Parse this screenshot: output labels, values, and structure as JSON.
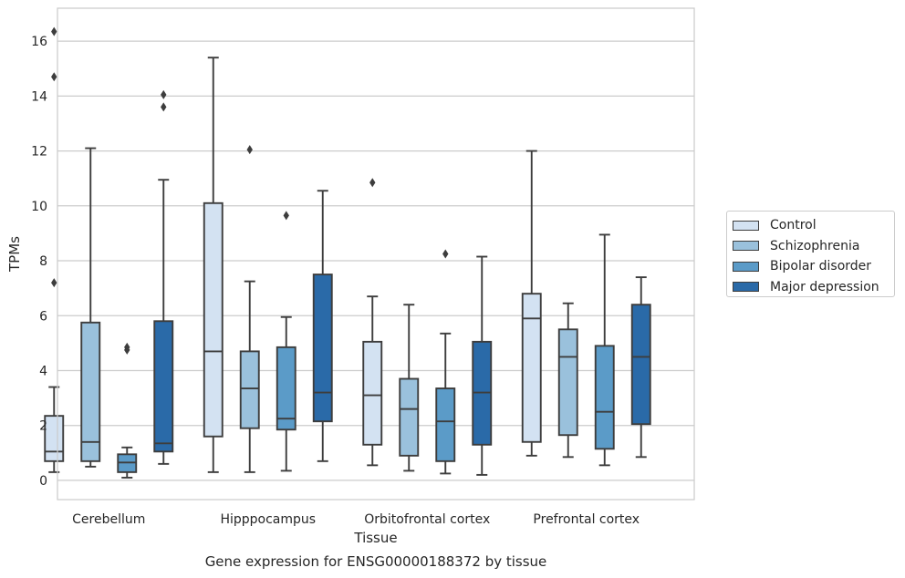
{
  "chart_data": {
    "type": "box",
    "title": "",
    "caption": "Gene expression for ENSG00000188372 by tissue",
    "xlabel": "Tissue",
    "ylabel": "TPMs",
    "ylim": [
      -0.7,
      17.2
    ],
    "yticks": [
      0,
      2,
      4,
      6,
      8,
      10,
      12,
      14,
      16
    ],
    "grid": "horizontal",
    "legend_position": "right",
    "categories": [
      "Cerebellum",
      "Hipppocampus",
      "Orbitofrontal cortex",
      "Prefrontal cortex"
    ],
    "series": [
      {
        "name": "Control",
        "color": "#d3e2f2",
        "boxes": [
          {
            "min": 0.3,
            "q1": 0.7,
            "median": 1.05,
            "q3": 2.35,
            "max": 3.4,
            "outliers": [
              7.2,
              14.7,
              16.35
            ]
          },
          {
            "min": 0.3,
            "q1": 1.6,
            "median": 4.7,
            "q3": 10.1,
            "max": 15.4,
            "outliers": []
          },
          {
            "min": 0.55,
            "q1": 1.3,
            "median": 3.1,
            "q3": 5.05,
            "max": 6.7,
            "outliers": [
              10.85
            ]
          },
          {
            "min": 0.9,
            "q1": 1.4,
            "median": 5.9,
            "q3": 6.8,
            "max": 12.0,
            "outliers": []
          }
        ]
      },
      {
        "name": "Schizophrenia",
        "color": "#9ac1dc",
        "boxes": [
          {
            "min": 0.5,
            "q1": 0.7,
            "median": 1.4,
            "q3": 5.75,
            "max": 12.1,
            "outliers": []
          },
          {
            "min": 0.3,
            "q1": 1.9,
            "median": 3.35,
            "q3": 4.7,
            "max": 7.25,
            "outliers": [
              12.05
            ]
          },
          {
            "min": 0.35,
            "q1": 0.9,
            "median": 2.6,
            "q3": 3.7,
            "max": 6.4,
            "outliers": []
          },
          {
            "min": 0.85,
            "q1": 1.65,
            "median": 4.5,
            "q3": 5.5,
            "max": 6.45,
            "outliers": []
          }
        ]
      },
      {
        "name": "Bipolar disorder",
        "color": "#5b9bc8",
        "boxes": [
          {
            "min": 0.1,
            "q1": 0.3,
            "median": 0.65,
            "q3": 0.95,
            "max": 1.2,
            "outliers": [
              4.75,
              4.85
            ]
          },
          {
            "min": 0.35,
            "q1": 1.85,
            "median": 2.25,
            "q3": 4.85,
            "max": 5.95,
            "outliers": [
              9.65
            ]
          },
          {
            "min": 0.25,
            "q1": 0.7,
            "median": 2.15,
            "q3": 3.35,
            "max": 5.35,
            "outliers": [
              8.25
            ]
          },
          {
            "min": 0.55,
            "q1": 1.15,
            "median": 2.5,
            "q3": 4.9,
            "max": 8.95,
            "outliers": []
          }
        ]
      },
      {
        "name": "Major depression",
        "color": "#2a6aa8",
        "boxes": [
          {
            "min": 0.6,
            "q1": 1.05,
            "median": 1.35,
            "q3": 5.8,
            "max": 10.95,
            "outliers": [
              13.6,
              14.05
            ]
          },
          {
            "min": 0.7,
            "q1": 2.15,
            "median": 3.2,
            "q3": 7.5,
            "max": 10.55,
            "outliers": []
          },
          {
            "min": 0.2,
            "q1": 1.3,
            "median": 3.2,
            "q3": 5.05,
            "max": 8.15,
            "outliers": []
          },
          {
            "min": 0.85,
            "q1": 2.05,
            "median": 4.5,
            "q3": 6.4,
            "max": 7.4,
            "outliers": []
          }
        ]
      }
    ]
  }
}
